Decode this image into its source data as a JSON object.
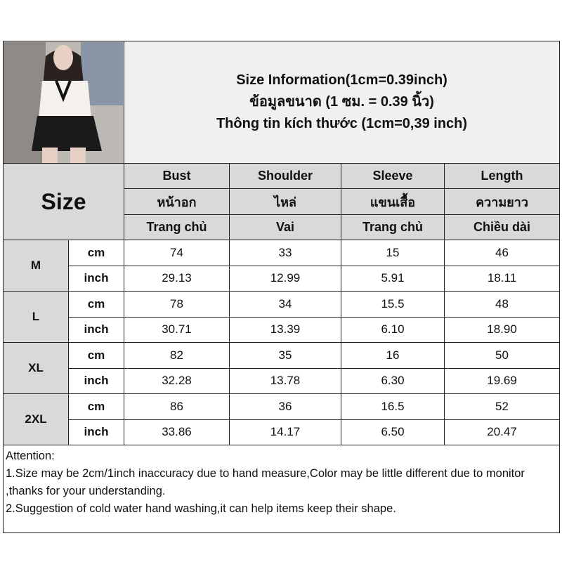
{
  "header": {
    "title_lines": [
      "Size Information(1cm=0.39inch)",
      "ข้อมูลขนาด (1 ซม. = 0.39 นิ้ว)",
      "Thông tin kích thước (1cm=0,39 inch)"
    ]
  },
  "size_label": "Size",
  "columns": [
    {
      "en": "Bust",
      "th": "หน้าอก",
      "vi": "Trang chủ"
    },
    {
      "en": "Shoulder",
      "th": "ไหล่",
      "vi": "Vai"
    },
    {
      "en": "Sleeve",
      "th": "แขนเสื้อ",
      "vi": "Trang chủ"
    },
    {
      "en": "Length",
      "th": "ความยาว",
      "vi": "Chiều dài"
    }
  ],
  "units": {
    "cm": "cm",
    "inch": "inch"
  },
  "rows": [
    {
      "size": "M",
      "cm": [
        "74",
        "33",
        "15",
        "46"
      ],
      "inch": [
        "29.13",
        "12.99",
        "5.91",
        "18.11"
      ]
    },
    {
      "size": "L",
      "cm": [
        "78",
        "34",
        "15.5",
        "48"
      ],
      "inch": [
        "30.71",
        "13.39",
        "6.10",
        "18.90"
      ]
    },
    {
      "size": "XL",
      "cm": [
        "82",
        "35",
        "16",
        "50"
      ],
      "inch": [
        "32.28",
        "13.78",
        "6.30",
        "19.69"
      ]
    },
    {
      "size": "2XL",
      "cm": [
        "86",
        "36",
        "16.5",
        "52"
      ],
      "inch": [
        "33.86",
        "14.17",
        "6.50",
        "20.47"
      ]
    }
  ],
  "attention": [
    "Attention:",
    "1.Size may be 2cm/1inch inaccuracy due to hand measure,Color may be little different due to monitor ,thanks for your understanding.",
    "2.Suggestion of cold water hand washing,it can help items keep their shape."
  ]
}
